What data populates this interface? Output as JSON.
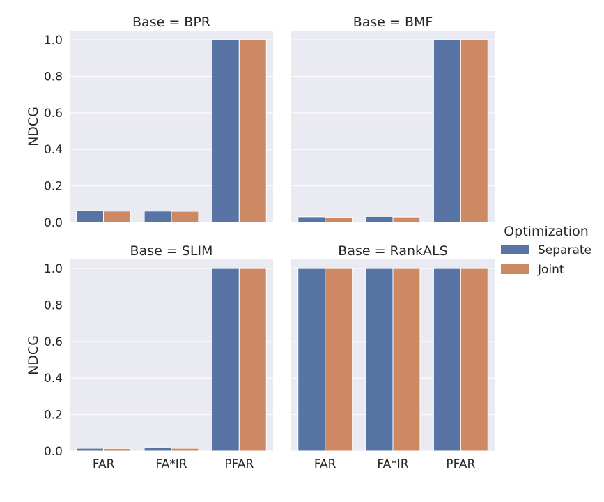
{
  "chart_data": {
    "type": "bar",
    "ylabel": "NDCG",
    "ylim": [
      0,
      1.05
    ],
    "yticks": [
      "0.0",
      "0.2",
      "0.4",
      "0.6",
      "0.8",
      "1.0"
    ],
    "categories": [
      "FAR",
      "FA*IR",
      "PFAR"
    ],
    "grid": true,
    "legend": {
      "title": "Optimization",
      "placement": "right",
      "entries": [
        "Separate",
        "Joint"
      ]
    },
    "colors": {
      "Separate": "#5874a5",
      "Joint": "#cc8963"
    },
    "panels": [
      {
        "title": "Base = BPR",
        "series": [
          {
            "name": "Separate",
            "values": [
              0.065,
              0.062,
              1.0
            ]
          },
          {
            "name": "Joint",
            "values": [
              0.062,
              0.061,
              1.0
            ]
          }
        ]
      },
      {
        "title": "Base = BMF",
        "series": [
          {
            "name": "Separate",
            "values": [
              0.031,
              0.033,
              1.0
            ]
          },
          {
            "name": "Joint",
            "values": [
              0.029,
              0.03,
              1.0
            ]
          }
        ]
      },
      {
        "title": "Base = SLIM",
        "series": [
          {
            "name": "Separate",
            "values": [
              0.015,
              0.018,
              1.0
            ]
          },
          {
            "name": "Joint",
            "values": [
              0.014,
              0.015,
              1.0
            ]
          }
        ]
      },
      {
        "title": "Base = RankALS",
        "series": [
          {
            "name": "Separate",
            "values": [
              1.0,
              1.0,
              1.0
            ]
          },
          {
            "name": "Joint",
            "values": [
              1.0,
              1.0,
              1.0
            ]
          }
        ]
      }
    ]
  }
}
